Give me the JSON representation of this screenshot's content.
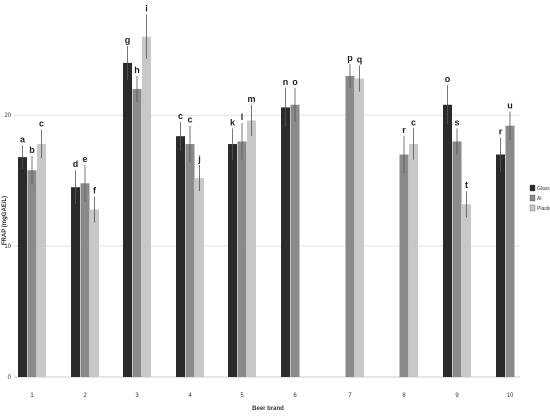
{
  "chart_data": {
    "type": "bar",
    "xlabel": "Beer brand",
    "ylabel": "FRAP (mgGAE/L)",
    "ylim": [
      0,
      28.5
    ],
    "yticks": [
      0,
      10,
      20
    ],
    "grid": true,
    "legend_position": "right",
    "categories": [
      "1",
      "2",
      "3",
      "4",
      "5",
      "6",
      "7",
      "8",
      "9",
      "10"
    ],
    "series": [
      {
        "name": "Glass",
        "color": "#2b2b2b",
        "values": [
          16.8,
          14.5,
          24.0,
          18.4,
          17.8,
          20.6,
          null,
          null,
          20.8,
          17.0
        ],
        "errors": [
          0.9,
          1.3,
          1.3,
          1.1,
          1.2,
          1.5,
          null,
          null,
          1.5,
          1.3
        ],
        "sig": [
          "a",
          "d",
          "g",
          "c",
          "k",
          "n",
          "",
          "",
          "o",
          "r"
        ]
      },
      {
        "name": "Al",
        "color": "#8a8a8a",
        "values": [
          15.8,
          14.8,
          22.0,
          17.8,
          18.0,
          20.8,
          23.0,
          17.0,
          18.0,
          19.2
        ],
        "errors": [
          1.1,
          1.4,
          1.0,
          1.4,
          1.4,
          1.3,
          0.9,
          1.4,
          1.0,
          1.1
        ],
        "sig": [
          "b",
          "e",
          "h",
          "c",
          "l",
          "o",
          "p",
          "r",
          "s",
          "u"
        ]
      },
      {
        "name": "Plastic",
        "color": "#c8c8c8",
        "values": [
          17.8,
          12.8,
          26.0,
          15.2,
          19.6,
          null,
          22.8,
          17.8,
          13.2,
          null
        ],
        "errors": [
          1.1,
          1.0,
          1.7,
          1.0,
          1.2,
          null,
          1.0,
          1.2,
          1.0,
          null
        ],
        "sig": [
          "c",
          "f",
          "i",
          "j",
          "m",
          "",
          "q",
          "c",
          "t",
          ""
        ]
      }
    ]
  }
}
